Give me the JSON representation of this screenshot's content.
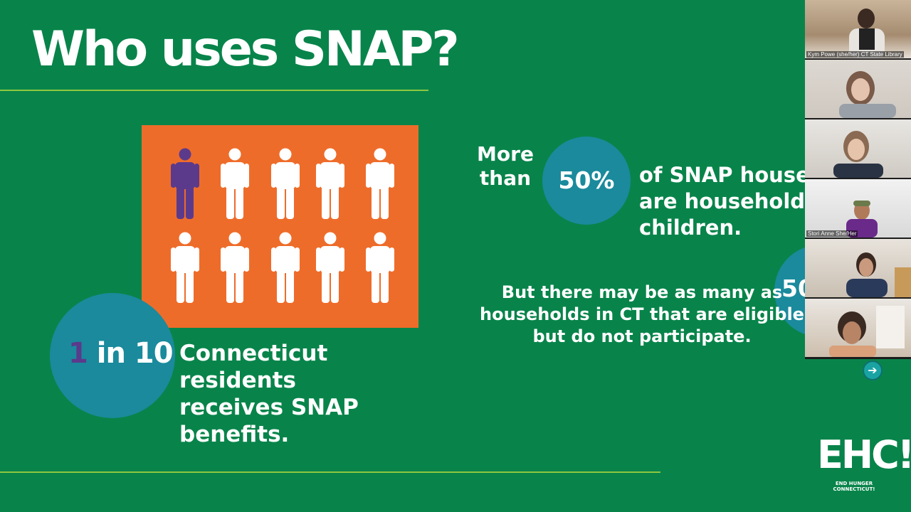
{
  "slide": {
    "title": "Who uses SNAP?",
    "people_icon": "person-icon",
    "highlight_color": "#5b3a8c",
    "people_total": 10,
    "people_highlighted": 1,
    "stat1": {
      "number_highlight": "1",
      "number_rest": " in 10",
      "text": "Connecticut residents\n receives SNAP\nbenefits."
    },
    "stat2": {
      "prefix": "More\nthan",
      "value": "50%",
      "text": "of SNAP house\nare household\nchildren."
    },
    "stat3": {
      "circle_value": "50",
      "text": "But there may be as many as\nhouseholds in CT that are eligible\nbut do not participate."
    },
    "logo": {
      "main": "EHC!",
      "sub": "END HUNGER CONNECTICUT!"
    },
    "colors": {
      "background": "#08844a",
      "accent_line": "#8dc63f",
      "orange": "#ee6c2a",
      "teal": "#1a8a9c"
    }
  },
  "gallery": {
    "participants": [
      {
        "name": "Kym Powe (she/her) CT State Library"
      },
      {
        "name": ""
      },
      {
        "name": ""
      },
      {
        "name": "Stori Anne She/Her"
      },
      {
        "name": ""
      },
      {
        "name": ""
      }
    ],
    "next_icon": "arrow-right-icon"
  }
}
